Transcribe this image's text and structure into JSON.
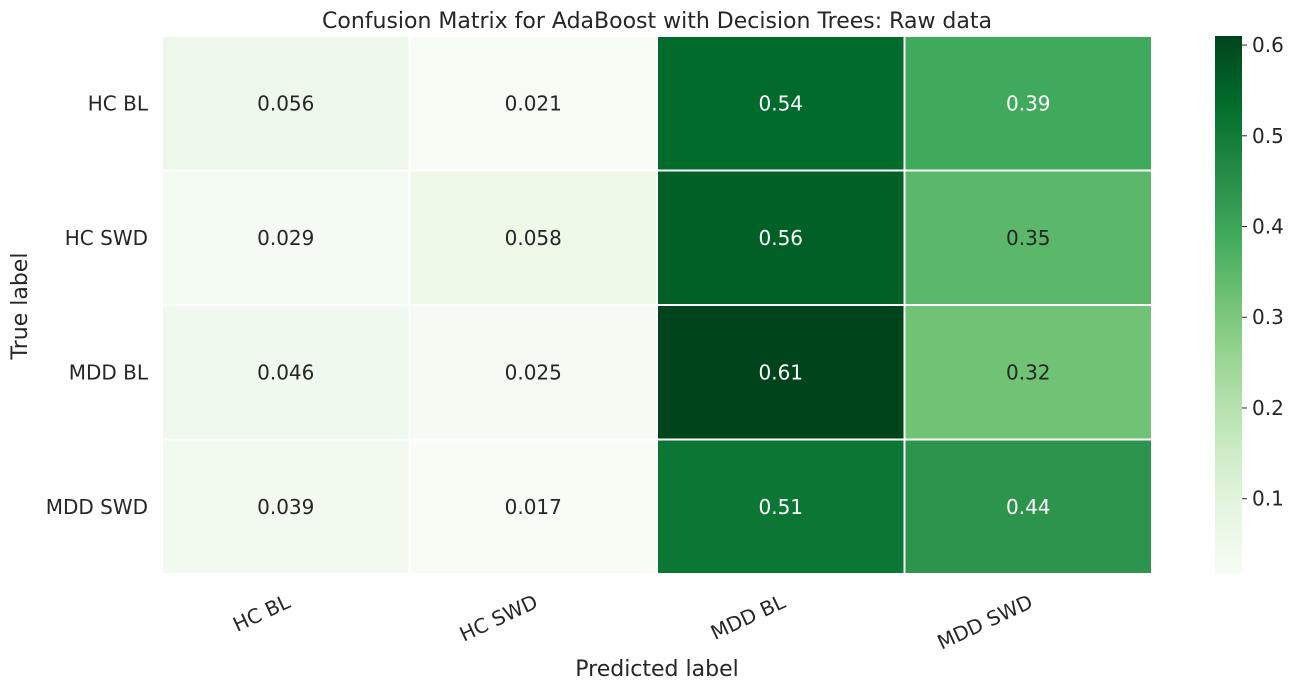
{
  "chart_data": {
    "type": "heatmap",
    "title": "Confusion Matrix for AdaBoost with Decision Trees: Raw data",
    "xlabel": "Predicted label",
    "ylabel": "True label",
    "x_categories": [
      "HC BL",
      "HC SWD",
      "MDD BL",
      "MDD SWD"
    ],
    "y_categories": [
      "HC BL",
      "HC SWD",
      "MDD BL",
      "MDD SWD"
    ],
    "values": [
      [
        0.056,
        0.021,
        0.54,
        0.39
      ],
      [
        0.029,
        0.058,
        0.56,
        0.35
      ],
      [
        0.046,
        0.025,
        0.61,
        0.32
      ],
      [
        0.039,
        0.017,
        0.51,
        0.44
      ]
    ],
    "cell_labels": [
      [
        "0.056",
        "0.021",
        "0.54",
        "0.39"
      ],
      [
        "0.029",
        "0.058",
        "0.56",
        "0.35"
      ],
      [
        "0.046",
        "0.025",
        "0.61",
        "0.32"
      ],
      [
        "0.039",
        "0.017",
        "0.51",
        "0.44"
      ]
    ],
    "colormap": "Greens",
    "color_range": [
      0.017,
      0.61
    ],
    "colorbar_ticks": [
      "0.1",
      "0.2",
      "0.3",
      "0.4",
      "0.5",
      "0.6"
    ],
    "colorbar_tick_values": [
      0.1,
      0.2,
      0.3,
      0.4,
      0.5,
      0.6
    ],
    "x_tick_rotation_deg": 25,
    "text_color_dark": "#262626",
    "text_color_light": "#ffffff",
    "grid": false
  }
}
